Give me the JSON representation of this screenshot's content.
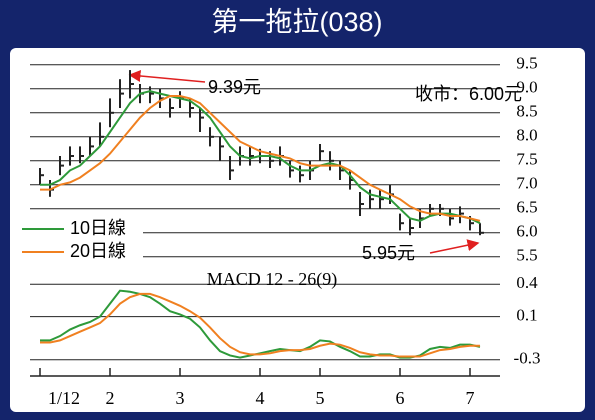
{
  "chart_data": [
    {
      "type": "candlestick",
      "title": "第一拖拉(038)",
      "color": "#222222",
      "high": [
        7.35,
        7.1,
        7.6,
        7.8,
        7.8,
        8.0,
        8.3,
        8.8,
        9.2,
        9.39,
        9.1,
        9.05,
        9.0,
        8.8,
        8.95,
        8.8,
        8.6,
        8.2,
        8.0,
        7.6,
        7.8,
        7.8,
        7.75,
        7.7,
        7.8,
        7.5,
        7.4,
        7.5,
        7.85,
        7.7,
        7.5,
        7.3,
        6.85,
        6.9,
        6.9,
        7.0,
        6.4,
        6.3,
        6.5,
        6.6,
        6.6,
        6.5,
        6.55,
        6.35,
        6.2
      ],
      "low": [
        7.0,
        6.75,
        7.2,
        7.4,
        7.45,
        7.6,
        7.8,
        8.2,
        8.6,
        8.8,
        8.7,
        8.7,
        8.6,
        8.4,
        8.6,
        8.4,
        8.1,
        7.8,
        7.5,
        7.1,
        7.4,
        7.4,
        7.45,
        7.35,
        7.4,
        7.15,
        7.05,
        7.1,
        7.5,
        7.3,
        7.1,
        6.9,
        6.35,
        6.5,
        6.5,
        6.6,
        6.05,
        5.95,
        6.1,
        6.35,
        6.35,
        6.15,
        6.2,
        6.05,
        5.95
      ],
      "close": [
        7.2,
        6.9,
        7.4,
        7.6,
        7.6,
        7.8,
        8.0,
        8.5,
        8.9,
        9.1,
        8.9,
        8.9,
        8.8,
        8.6,
        8.8,
        8.6,
        8.4,
        8.0,
        7.8,
        7.3,
        7.6,
        7.6,
        7.6,
        7.5,
        7.6,
        7.3,
        7.2,
        7.3,
        7.7,
        7.5,
        7.3,
        7.1,
        6.6,
        6.7,
        6.7,
        6.8,
        6.2,
        6.1,
        6.3,
        6.5,
        6.5,
        6.3,
        6.4,
        6.2,
        6.0
      ],
      "series": [
        {
          "name": "10日線",
          "color": "#2e9a3a",
          "values": [
            7.0,
            7.0,
            7.1,
            7.3,
            7.4,
            7.6,
            7.8,
            8.1,
            8.4,
            8.7,
            8.9,
            8.95,
            8.9,
            8.85,
            8.8,
            8.75,
            8.6,
            8.4,
            8.1,
            7.8,
            7.6,
            7.55,
            7.6,
            7.6,
            7.55,
            7.4,
            7.3,
            7.3,
            7.4,
            7.45,
            7.4,
            7.2,
            6.95,
            6.8,
            6.75,
            6.7,
            6.5,
            6.3,
            6.25,
            6.35,
            6.4,
            6.4,
            6.35,
            6.3,
            6.2
          ]
        },
        {
          "name": "20日線",
          "color": "#f08020",
          "values": [
            6.9,
            6.9,
            7.0,
            7.05,
            7.15,
            7.3,
            7.45,
            7.65,
            7.9,
            8.15,
            8.4,
            8.6,
            8.75,
            8.85,
            8.85,
            8.8,
            8.7,
            8.5,
            8.3,
            8.1,
            7.9,
            7.8,
            7.7,
            7.65,
            7.6,
            7.55,
            7.45,
            7.4,
            7.4,
            7.4,
            7.4,
            7.3,
            7.15,
            7.0,
            6.9,
            6.8,
            6.7,
            6.55,
            6.45,
            6.4,
            6.4,
            6.35,
            6.35,
            6.3,
            6.25
          ]
        }
      ],
      "ylim": [
        5.3,
        9.6
      ],
      "yticks": [
        9.5,
        {
          "value": 9,
          "label": "9.0"
        },
        8.5,
        {
          "value": 8,
          "label": "8.0"
        },
        7.5,
        {
          "value": 7,
          "label": "7.0"
        },
        6.5,
        {
          "value": 6,
          "label": "6.0"
        },
        5.5
      ],
      "grid": true,
      "legend": "lower left",
      "annotations": [
        "9.39元",
        "收市：6.00元",
        "5.95元"
      ]
    },
    {
      "type": "line",
      "title": "MACD 12 - 26(9)",
      "categories": [
        "1/12",
        null,
        null,
        null,
        null,
        null,
        null,
        "2",
        null,
        null,
        null,
        null,
        null,
        null,
        "3",
        null,
        null,
        null,
        null,
        null,
        null,
        null,
        "4",
        null,
        null,
        null,
        null,
        null,
        "5",
        null,
        null,
        null,
        null,
        null,
        null,
        null,
        "6",
        null,
        null,
        null,
        null,
        null,
        null,
        "7",
        null
      ],
      "series": [
        {
          "color": "#2e9a3a",
          "values": [
            -0.12,
            -0.12,
            -0.08,
            -0.02,
            0.02,
            0.05,
            0.1,
            0.22,
            0.34,
            0.33,
            0.31,
            0.28,
            0.22,
            0.15,
            0.12,
            0.08,
            0.0,
            -0.12,
            -0.22,
            -0.26,
            -0.28,
            -0.26,
            -0.24,
            -0.22,
            -0.2,
            -0.21,
            -0.22,
            -0.18,
            -0.12,
            -0.13,
            -0.18,
            -0.22,
            -0.27,
            -0.27,
            -0.25,
            -0.25,
            -0.28,
            -0.28,
            -0.26,
            -0.2,
            -0.18,
            -0.19,
            -0.16,
            -0.16,
            -0.18
          ]
        },
        {
          "color": "#f08020",
          "values": [
            -0.14,
            -0.14,
            -0.12,
            -0.08,
            -0.04,
            0.0,
            0.04,
            0.12,
            0.22,
            0.28,
            0.31,
            0.31,
            0.28,
            0.24,
            0.2,
            0.15,
            0.09,
            0.0,
            -0.1,
            -0.18,
            -0.23,
            -0.25,
            -0.25,
            -0.24,
            -0.22,
            -0.21,
            -0.21,
            -0.2,
            -0.17,
            -0.15,
            -0.16,
            -0.19,
            -0.23,
            -0.25,
            -0.26,
            -0.26,
            -0.27,
            -0.27,
            -0.27,
            -0.24,
            -0.21,
            -0.2,
            -0.18,
            -0.17,
            -0.17
          ]
        }
      ],
      "ylim": [
        -0.45,
        0.55
      ],
      "yticks": [
        0.4,
        0.1,
        -0.3
      ],
      "grid": true
    }
  ]
}
